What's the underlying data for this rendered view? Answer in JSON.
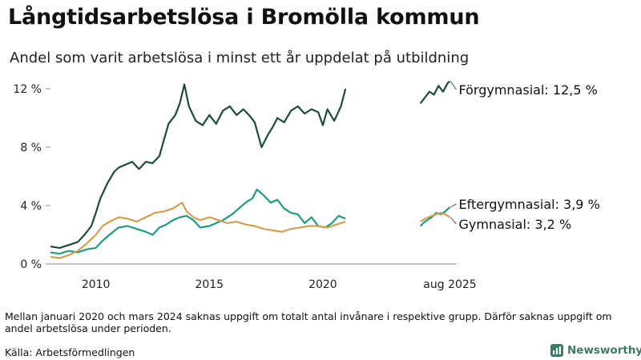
{
  "title": "Långtidsarbetslösa i Bromölla kommun",
  "subtitle": "Andel som varit arbetslösa i minst ett år uppdelat på utbildning",
  "footnote": "Mellan januari 2020 och mars 2024 saknas uppgift om totalt antal invånare i respektive grupp. Därför saknas uppgift om andel arbetslösa under perioden.",
  "source": "Källa: Arbetsförmedlingen",
  "logo_text": "Newsworthy",
  "colors": {
    "forgymnasial": "#1e4a3c",
    "eftergymnasial": "#1f9a84",
    "gymnasial": "#cf9f52",
    "axis": "#888888",
    "brand": "#3d7a62"
  },
  "chart_data": {
    "type": "line",
    "xlim": [
      2008,
      2025.9
    ],
    "ylim": [
      0,
      12.6
    ],
    "y_ticks": [
      0,
      4,
      8,
      12
    ],
    "y_tick_labels": [
      "0 %",
      "4 %",
      "8 %",
      "12 %"
    ],
    "x_ticks": [
      2010,
      2015,
      2020,
      2025.6
    ],
    "x_tick_labels": [
      "2010",
      "2015",
      "2020",
      "aug 2025"
    ],
    "grid": false,
    "legend": "direct labels at line ends",
    "series": [
      {
        "name": "Förgymnasial",
        "label": "Förgymnasial: 12,5 %",
        "color_key": "forgymnasial",
        "segments": [
          {
            "x": [
              2008.0,
              2008.4,
              2008.8,
              2009.2,
              2009.5,
              2009.8,
              2010.0,
              2010.2,
              2010.5,
              2010.8,
              2011.0,
              2011.3,
              2011.6,
              2011.9,
              2012.2,
              2012.5,
              2012.8,
              2013.0,
              2013.2,
              2013.5,
              2013.7,
              2013.9,
              2014.1,
              2014.4,
              2014.7,
              2015.0,
              2015.3,
              2015.6,
              2015.9,
              2016.2,
              2016.5,
              2016.8,
              2017.0,
              2017.3,
              2017.6,
              2017.8,
              2018.0,
              2018.3,
              2018.6,
              2018.9,
              2019.2,
              2019.5,
              2019.8,
              2020.0,
              2020.2,
              2020.5,
              2020.8,
              2021.0
            ],
            "y": [
              1.2,
              1.1,
              1.3,
              1.5,
              2.0,
              2.6,
              3.5,
              4.5,
              5.5,
              6.3,
              6.6,
              6.8,
              7.0,
              6.5,
              7.0,
              6.9,
              7.4,
              8.5,
              9.6,
              10.2,
              11.0,
              12.3,
              10.8,
              9.8,
              9.5,
              10.2,
              9.6,
              10.5,
              10.8,
              10.2,
              10.6,
              10.1,
              9.7,
              8.0,
              8.9,
              9.4,
              10.0,
              9.7,
              10.5,
              10.8,
              10.3,
              10.6,
              10.4,
              9.5,
              10.6,
              9.8,
              10.8,
              12.0
            ]
          },
          {
            "x": [
              2024.3,
              2024.5,
              2024.7,
              2024.9,
              2025.1,
              2025.3,
              2025.5,
              2025.6
            ],
            "y": [
              11.0,
              11.4,
              11.8,
              11.6,
              12.2,
              11.8,
              12.4,
              12.5
            ]
          }
        ]
      },
      {
        "name": "Eftergymnasial",
        "label": "Eftergymnasial:  3,9 %",
        "color_key": "eftergymnasial",
        "segments": [
          {
            "x": [
              2008.0,
              2008.4,
              2008.8,
              2009.2,
              2009.6,
              2010.0,
              2010.3,
              2010.6,
              2011.0,
              2011.4,
              2011.8,
              2012.2,
              2012.5,
              2012.8,
              2013.1,
              2013.4,
              2013.7,
              2014.0,
              2014.3,
              2014.6,
              2015.0,
              2015.3,
              2015.6,
              2016.0,
              2016.3,
              2016.6,
              2016.9,
              2017.1,
              2017.4,
              2017.7,
              2018.0,
              2018.3,
              2018.6,
              2018.9,
              2019.2,
              2019.5,
              2019.8,
              2020.1,
              2020.4,
              2020.7,
              2021.0
            ],
            "y": [
              0.8,
              0.7,
              0.9,
              0.8,
              1.0,
              1.1,
              1.6,
              2.0,
              2.5,
              2.6,
              2.4,
              2.2,
              2.0,
              2.5,
              2.7,
              3.0,
              3.2,
              3.3,
              3.0,
              2.5,
              2.6,
              2.8,
              3.0,
              3.4,
              3.8,
              4.2,
              4.5,
              5.1,
              4.7,
              4.2,
              4.4,
              3.8,
              3.5,
              3.4,
              2.8,
              3.2,
              2.6,
              2.5,
              2.8,
              3.3,
              3.1
            ]
          },
          {
            "x": [
              2024.3,
              2024.5,
              2024.8,
              2025.0,
              2025.2,
              2025.4,
              2025.6
            ],
            "y": [
              2.6,
              2.9,
              3.2,
              3.5,
              3.4,
              3.6,
              3.9
            ]
          }
        ]
      },
      {
        "name": "Gymnasial",
        "label": "Gymnasial:  3,2 %",
        "color_key": "gymnasial",
        "segments": [
          {
            "x": [
              2008.0,
              2008.4,
              2008.8,
              2009.2,
              2009.6,
              2010.0,
              2010.3,
              2010.6,
              2011.0,
              2011.4,
              2011.8,
              2012.2,
              2012.6,
              2013.0,
              2013.4,
              2013.8,
              2014.0,
              2014.3,
              2014.6,
              2015.0,
              2015.4,
              2015.8,
              2016.2,
              2016.6,
              2017.0,
              2017.4,
              2017.8,
              2018.2,
              2018.6,
              2019.0,
              2019.4,
              2019.8,
              2020.2,
              2020.6,
              2021.0
            ],
            "y": [
              0.5,
              0.4,
              0.6,
              0.9,
              1.4,
              2.0,
              2.6,
              2.9,
              3.2,
              3.1,
              2.9,
              3.2,
              3.5,
              3.6,
              3.8,
              4.2,
              3.6,
              3.2,
              3.0,
              3.2,
              3.0,
              2.8,
              2.9,
              2.7,
              2.6,
              2.4,
              2.3,
              2.2,
              2.4,
              2.5,
              2.6,
              2.6,
              2.5,
              2.7,
              2.9
            ]
          },
          {
            "x": [
              2024.3,
              2024.5,
              2024.8,
              2025.0,
              2025.2,
              2025.4,
              2025.6
            ],
            "y": [
              2.9,
              3.1,
              3.3,
              3.4,
              3.5,
              3.4,
              3.2
            ]
          }
        ]
      }
    ]
  }
}
